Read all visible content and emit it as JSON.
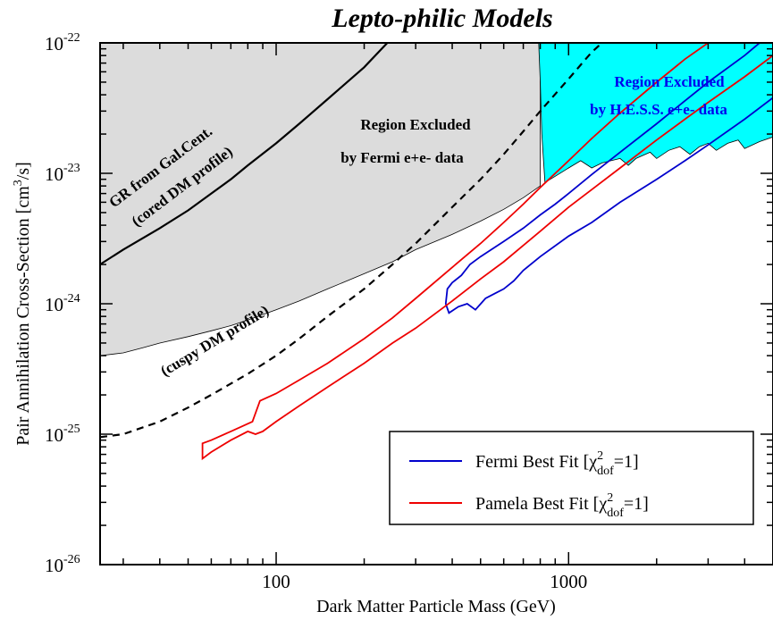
{
  "chart_data": {
    "type": "line",
    "title": "Lepto-philic Models",
    "xlabel": "Dark Matter Particle Mass (GeV)",
    "ylabel": "Pair Annihilation Cross-Section [cm",
    "ylabel_sup": "3",
    "ylabel_tail": "/s]",
    "xscale": "log",
    "yscale": "log",
    "xlim": [
      25,
      5000
    ],
    "ylim": [
      1e-26,
      1e-22
    ],
    "x_ticks": [
      {
        "value": 100,
        "label": "100"
      },
      {
        "value": 1000,
        "label": "1000"
      }
    ],
    "y_ticks": [
      {
        "value": 1e-22,
        "base": "10",
        "exp": "-22"
      },
      {
        "value": 1e-23,
        "base": "10",
        "exp": "-23"
      },
      {
        "value": 1e-24,
        "base": "10",
        "exp": "-24"
      },
      {
        "value": 1e-25,
        "base": "10",
        "exp": "-25"
      },
      {
        "value": 1e-26,
        "base": "10",
        "exp": "-26"
      }
    ],
    "regions": [
      {
        "name": "fermi-excluded-region",
        "fill": "#dcdcdc",
        "label_lines": [
          "Region Excluded",
          "by Fermi e+e- data"
        ],
        "label_color": "#000000",
        "boundary": [
          [
            25,
            4e-25
          ],
          [
            30,
            4.2e-25
          ],
          [
            35,
            4.6e-25
          ],
          [
            40,
            5e-25
          ],
          [
            50,
            5.6e-25
          ],
          [
            60,
            6.2e-25
          ],
          [
            70,
            6.8e-25
          ],
          [
            80,
            7.5e-25
          ],
          [
            100,
            9e-25
          ],
          [
            120,
            1.05e-24
          ],
          [
            150,
            1.3e-24
          ],
          [
            200,
            1.7e-24
          ],
          [
            250,
            2.1e-24
          ],
          [
            300,
            2.6e-24
          ],
          [
            400,
            3.4e-24
          ],
          [
            500,
            4.3e-24
          ],
          [
            600,
            5.3e-24
          ],
          [
            700,
            6.5e-24
          ],
          [
            800,
            8e-24
          ]
        ]
      },
      {
        "name": "hess-excluded-region",
        "fill": "#00ffff",
        "label_lines": [
          "Region Excluded",
          "by H.E.S.S. e+e- data"
        ],
        "label_color": "#0000ee",
        "boundary": [
          [
            790,
            1e-22
          ],
          [
            800,
            5e-23
          ],
          [
            810,
            2e-23
          ],
          [
            830,
            8.5e-24
          ],
          [
            900,
            9.5e-24
          ],
          [
            1000,
            1.1e-23
          ],
          [
            1100,
            1.25e-23
          ],
          [
            1200,
            1.1e-23
          ],
          [
            1300,
            1.2e-23
          ],
          [
            1500,
            1.3e-23
          ],
          [
            1600,
            1.15e-23
          ],
          [
            1700,
            1.3e-23
          ],
          [
            1900,
            1.45e-23
          ],
          [
            2000,
            1.3e-23
          ],
          [
            2200,
            1.5e-23
          ],
          [
            2400,
            1.6e-23
          ],
          [
            2600,
            1.4e-23
          ],
          [
            2800,
            1.6e-23
          ],
          [
            3000,
            1.7e-23
          ],
          [
            3200,
            1.5e-23
          ],
          [
            3500,
            1.7e-23
          ],
          [
            3800,
            1.8e-23
          ],
          [
            4000,
            1.55e-23
          ],
          [
            4500,
            1.75e-23
          ],
          [
            5000,
            1.9e-23
          ]
        ]
      }
    ],
    "lines": [
      {
        "name": "gr-cored-line",
        "stroke": "#000000",
        "dash": "none",
        "label_lines": [
          "GR from Gal.Cent.",
          "(cored DM profile)"
        ],
        "points": [
          [
            25,
            2e-24
          ],
          [
            30,
            2.6e-24
          ],
          [
            40,
            3.8e-24
          ],
          [
            50,
            5.2e-24
          ],
          [
            60,
            7e-24
          ],
          [
            70,
            9e-24
          ],
          [
            80,
            1.15e-23
          ],
          [
            100,
            1.7e-23
          ],
          [
            120,
            2.4e-23
          ],
          [
            150,
            3.7e-23
          ],
          [
            180,
            5.3e-23
          ],
          [
            200,
            6.5e-23
          ],
          [
            240,
            1e-22
          ]
        ]
      },
      {
        "name": "cuspy-line",
        "stroke": "#000000",
        "dash": "8,6",
        "label_lines": [
          "(cuspy DM profile)"
        ],
        "points": [
          [
            25,
            9.5e-26
          ],
          [
            30,
            1e-25
          ],
          [
            40,
            1.25e-25
          ],
          [
            50,
            1.6e-25
          ],
          [
            60,
            2e-25
          ],
          [
            80,
            2.9e-25
          ],
          [
            100,
            4e-25
          ],
          [
            120,
            5.4e-25
          ],
          [
            150,
            8e-25
          ],
          [
            200,
            1.3e-24
          ],
          [
            250,
            2e-24
          ],
          [
            300,
            2.9e-24
          ],
          [
            400,
            5.5e-24
          ],
          [
            500,
            9e-24
          ],
          [
            600,
            1.4e-23
          ],
          [
            700,
            2.1e-23
          ],
          [
            800,
            3e-23
          ],
          [
            1000,
            5.3e-23
          ],
          [
            1200,
            8.5e-23
          ],
          [
            1300,
            1e-22
          ]
        ]
      }
    ],
    "series": [
      {
        "name": "Fermi Best Fit [χ",
        "name_sup": "2",
        "name_sub": "dof",
        "name_tail": "=1]",
        "color": "#0000cc",
        "contour": [
          [
            380,
            1e-24
          ],
          [
            385,
            1.3e-24
          ],
          [
            400,
            1.45e-24
          ],
          [
            430,
            1.65e-24
          ],
          [
            460,
            2e-24
          ],
          [
            500,
            2.3e-24
          ],
          [
            600,
            3e-24
          ],
          [
            700,
            3.8e-24
          ],
          [
            800,
            4.8e-24
          ],
          [
            900,
            5.8e-24
          ],
          [
            1000,
            7e-24
          ],
          [
            1200,
            9.8e-24
          ],
          [
            1500,
            1.45e-23
          ],
          [
            2000,
            2.4e-23
          ],
          [
            2500,
            3.6e-23
          ],
          [
            3000,
            5e-23
          ],
          [
            4000,
            8e-23
          ],
          [
            4500,
            1e-22
          ],
          [
            5000,
            1.1e-22
          ],
          [
            5000,
            3.8e-23
          ],
          [
            4000,
            2.6e-23
          ],
          [
            3000,
            1.65e-23
          ],
          [
            2500,
            1.25e-23
          ],
          [
            2000,
            9e-24
          ],
          [
            1500,
            6e-24
          ],
          [
            1200,
            4.2e-24
          ],
          [
            1000,
            3.3e-24
          ],
          [
            800,
            2.3e-24
          ],
          [
            700,
            1.8e-24
          ],
          [
            650,
            1.5e-24
          ],
          [
            600,
            1.3e-24
          ],
          [
            560,
            1.2e-24
          ],
          [
            520,
            1.1e-24
          ],
          [
            480,
            9e-25
          ],
          [
            450,
            1e-24
          ],
          [
            420,
            9.5e-25
          ],
          [
            390,
            8.5e-25
          ],
          [
            380,
            1e-24
          ]
        ]
      },
      {
        "name": "Pamela Best Fit [χ",
        "name_sup": "2",
        "name_sub": "dof",
        "name_tail": "=1]",
        "color": "#ee0000",
        "contour": [
          [
            56,
            6.5e-26
          ],
          [
            56,
            8.5e-26
          ],
          [
            60,
            9e-26
          ],
          [
            70,
            1.05e-25
          ],
          [
            83,
            1.25e-25
          ],
          [
            88,
            1.8e-25
          ],
          [
            100,
            2.05e-25
          ],
          [
            120,
            2.6e-25
          ],
          [
            150,
            3.5e-25
          ],
          [
            200,
            5.4e-25
          ],
          [
            250,
            7.8e-25
          ],
          [
            300,
            1.1e-24
          ],
          [
            400,
            1.9e-24
          ],
          [
            500,
            2.9e-24
          ],
          [
            600,
            4.2e-24
          ],
          [
            700,
            5.8e-24
          ],
          [
            800,
            7.8e-24
          ],
          [
            1000,
            1.25e-23
          ],
          [
            1200,
            1.85e-23
          ],
          [
            1500,
            2.9e-23
          ],
          [
            2000,
            5e-23
          ],
          [
            2500,
            7.5e-23
          ],
          [
            3000,
            1e-22
          ],
          [
            3500,
            1e-22
          ],
          [
            4000,
            1e-22
          ],
          [
            5000,
            1.2e-22
          ],
          [
            5000,
            8e-23
          ],
          [
            4000,
            5.5e-23
          ],
          [
            3000,
            3.5e-23
          ],
          [
            2500,
            2.6e-23
          ],
          [
            2000,
            1.8e-23
          ],
          [
            1500,
            1.1e-23
          ],
          [
            1200,
            7.5e-24
          ],
          [
            1000,
            5.5e-24
          ],
          [
            800,
            3.6e-24
          ],
          [
            700,
            2.8e-24
          ],
          [
            600,
            2.1e-24
          ],
          [
            500,
            1.55e-24
          ],
          [
            400,
            1.05e-24
          ],
          [
            300,
            6.5e-25
          ],
          [
            250,
            5e-25
          ],
          [
            200,
            3.5e-25
          ],
          [
            150,
            2.3e-25
          ],
          [
            120,
            1.65e-25
          ],
          [
            100,
            1.25e-25
          ],
          [
            90,
            1.05e-25
          ],
          [
            85,
            1e-25
          ],
          [
            80,
            1.05e-25
          ],
          [
            70,
            9e-26
          ],
          [
            60,
            7.3e-26
          ],
          [
            56,
            6.5e-26
          ]
        ]
      }
    ],
    "legend": {
      "position": "bottom-right"
    },
    "grid": false
  }
}
